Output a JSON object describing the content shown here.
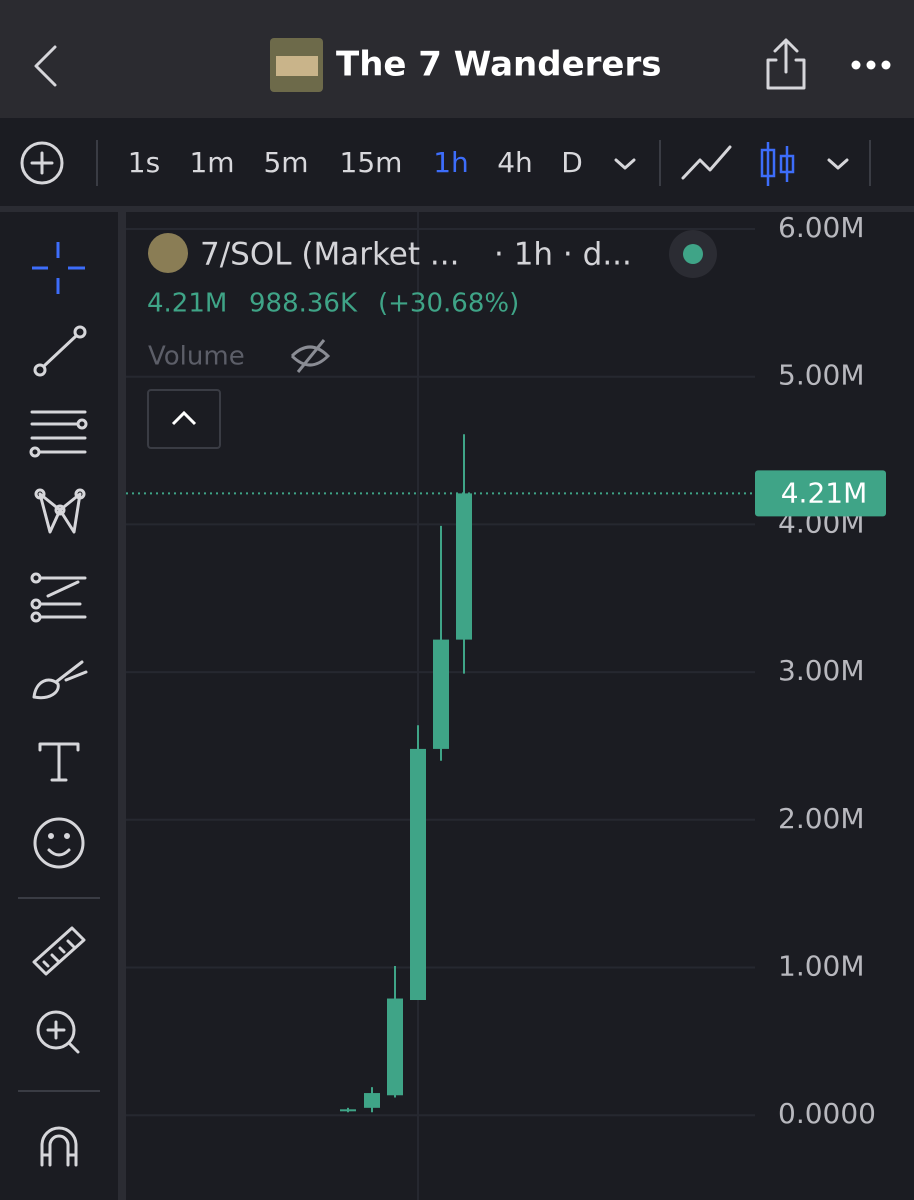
{
  "header": {
    "title": "The 7 Wanderers"
  },
  "toolbar": {
    "intervals": [
      "1s",
      "1m",
      "5m",
      "15m",
      "1h",
      "4h",
      "D"
    ],
    "active_interval": "1h"
  },
  "info": {
    "symbol": "7/SOL (Market ...",
    "interval": "· 1h · d...",
    "price": "4.21M",
    "change": "988.36K",
    "change_pct": "(+30.68%)",
    "volume": "Volume"
  },
  "chart_data": {
    "type": "candlestick",
    "color": "#3fa487",
    "categories": [
      null,
      null,
      null,
      null,
      null,
      null
    ],
    "open": [
      30000,
      50000,
      135000,
      780000,
      2480000,
      3220000
    ],
    "high": [
      50000,
      190000,
      1010000,
      2640000,
      3990000,
      4610000
    ],
    "low": [
      20000,
      20000,
      120000,
      780000,
      2400000,
      2990000
    ],
    "close": [
      40000,
      150000,
      790000,
      2480000,
      3220000,
      4210000
    ],
    "ylim": [
      -574000,
      6115000
    ],
    "yticks": [
      {
        "value": 0,
        "label": "0.0000"
      },
      {
        "value": 1000000,
        "label": "1.00M"
      },
      {
        "value": 2000000,
        "label": "2.00M"
      },
      {
        "value": 3000000,
        "label": "3.00M"
      },
      {
        "value": 4000000,
        "label": "4.00M"
      },
      {
        "value": 5000000,
        "label": "5.00M"
      },
      {
        "value": 6000000,
        "label": "6.00M"
      }
    ],
    "grid": true,
    "last_price": {
      "value": 4210000,
      "label": "4.21M"
    }
  }
}
